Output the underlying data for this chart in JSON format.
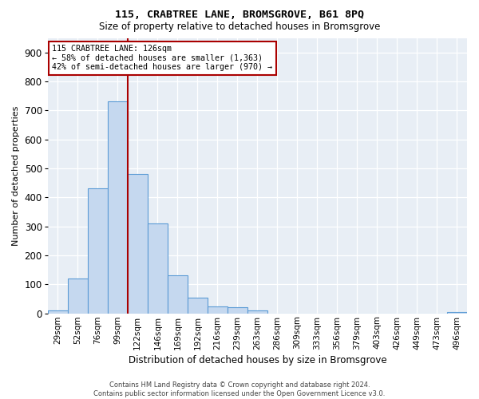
{
  "title1": "115, CRABTREE LANE, BROMSGROVE, B61 8PQ",
  "title2": "Size of property relative to detached houses in Bromsgrove",
  "xlabel": "Distribution of detached houses by size in Bromsgrove",
  "ylabel": "Number of detached properties",
  "categories": [
    "29sqm",
    "52sqm",
    "76sqm",
    "99sqm",
    "122sqm",
    "146sqm",
    "169sqm",
    "192sqm",
    "216sqm",
    "239sqm",
    "263sqm",
    "286sqm",
    "309sqm",
    "333sqm",
    "356sqm",
    "379sqm",
    "403sqm",
    "426sqm",
    "449sqm",
    "473sqm",
    "496sqm"
  ],
  "values": [
    10,
    120,
    430,
    730,
    480,
    310,
    130,
    55,
    25,
    20,
    10,
    0,
    0,
    0,
    0,
    0,
    0,
    0,
    0,
    0,
    5
  ],
  "bar_color": "#c5d8ef",
  "bar_edge_color": "#5b9bd5",
  "plot_bg_color": "#e8eef5",
  "red_line_index": 4,
  "annotation_line1": "115 CRABTREE LANE: 126sqm",
  "annotation_line2": "← 58% of detached houses are smaller (1,363)",
  "annotation_line3": "42% of semi-detached houses are larger (970) →",
  "red_line_color": "#aa0000",
  "ylim_max": 950,
  "yticks": [
    0,
    100,
    200,
    300,
    400,
    500,
    600,
    700,
    800,
    900
  ],
  "footer1": "Contains HM Land Registry data © Crown copyright and database right 2024.",
  "footer2": "Contains public sector information licensed under the Open Government Licence v3.0."
}
